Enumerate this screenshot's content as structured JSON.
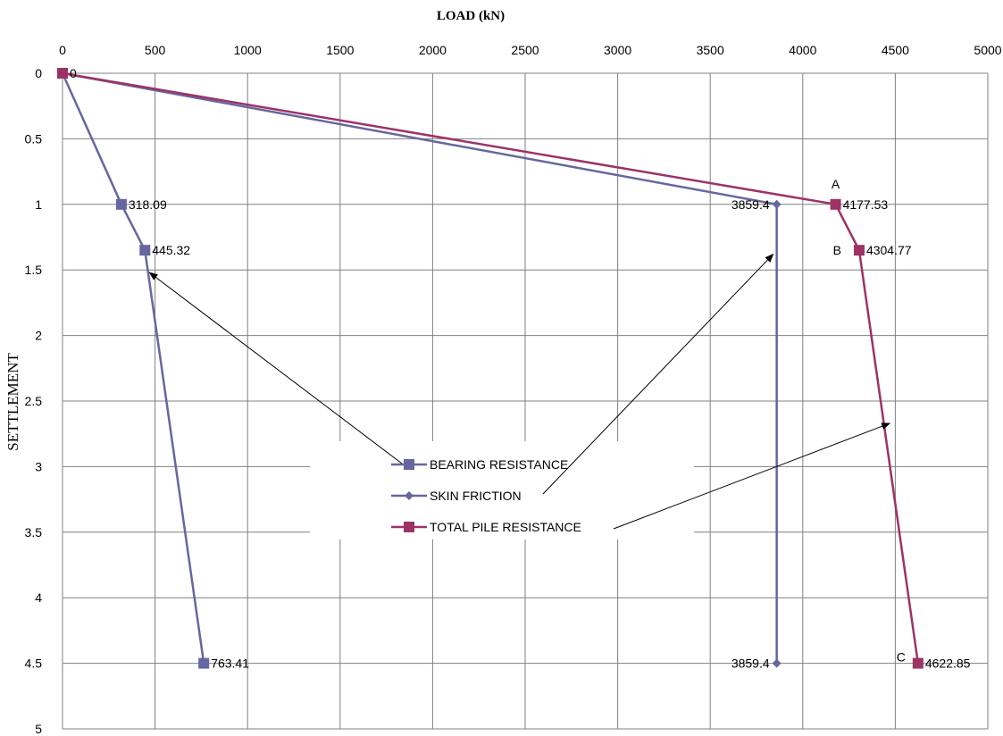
{
  "chart_data": {
    "type": "line",
    "title": "",
    "xlabel": "LOAD (kN)",
    "ylabel": "SETTLEMENT",
    "xlim": [
      0,
      5000
    ],
    "ylim": [
      0,
      5
    ],
    "x_axis_position": "top",
    "y_axis_inverted": true,
    "grid": true,
    "x_ticks": [
      "0",
      "500",
      "1000",
      "1500",
      "2000",
      "2500",
      "3000",
      "3500",
      "4000",
      "4500",
      "5000"
    ],
    "y_ticks": [
      "0",
      "0.5",
      "1",
      "1.5",
      "2",
      "2.5",
      "3",
      "3.5",
      "4",
      "4.5",
      "5"
    ],
    "series": [
      {
        "name": "BEARING RESISTANCE",
        "color": "#6666a0",
        "marker": "square",
        "points": [
          {
            "x": 0,
            "y": 0,
            "label": "0"
          },
          {
            "x": 318.09,
            "y": 1,
            "label": "318.09"
          },
          {
            "x": 445.32,
            "y": 1.35,
            "label": "445.32"
          },
          {
            "x": 763.41,
            "y": 4.5,
            "label": "763.41"
          }
        ]
      },
      {
        "name": "SKIN FRICTION",
        "color": "#6666a0",
        "marker": "diamond",
        "points": [
          {
            "x": 0,
            "y": 0,
            "label": ""
          },
          {
            "x": 3859.4,
            "y": 1,
            "label": "3859.4"
          },
          {
            "x": 3859.4,
            "y": 4.5,
            "label": "3859.4"
          }
        ]
      },
      {
        "name": "TOTAL PILE RESISTANCE",
        "color": "#9c3366",
        "marker": "square",
        "points": [
          {
            "x": 0,
            "y": 0,
            "label": "0"
          },
          {
            "x": 4177.53,
            "y": 1,
            "label": "4177.53"
          },
          {
            "x": 4304.77,
            "y": 1.35,
            "label": "4304.77"
          },
          {
            "x": 4622.85,
            "y": 4.5,
            "label": "4622.85"
          }
        ]
      }
    ],
    "annotations": [
      {
        "text": "A",
        "x": 4177.53,
        "y": 1
      },
      {
        "text": "B",
        "x": 4304.77,
        "y": 1.35
      },
      {
        "text": "C",
        "x": 4622.85,
        "y": 4.5
      }
    ],
    "legend": {
      "position": "center",
      "entries": [
        "BEARING RESISTANCE",
        "SKIN FRICTION",
        "TOTAL PILE RESISTANCE"
      ]
    }
  }
}
